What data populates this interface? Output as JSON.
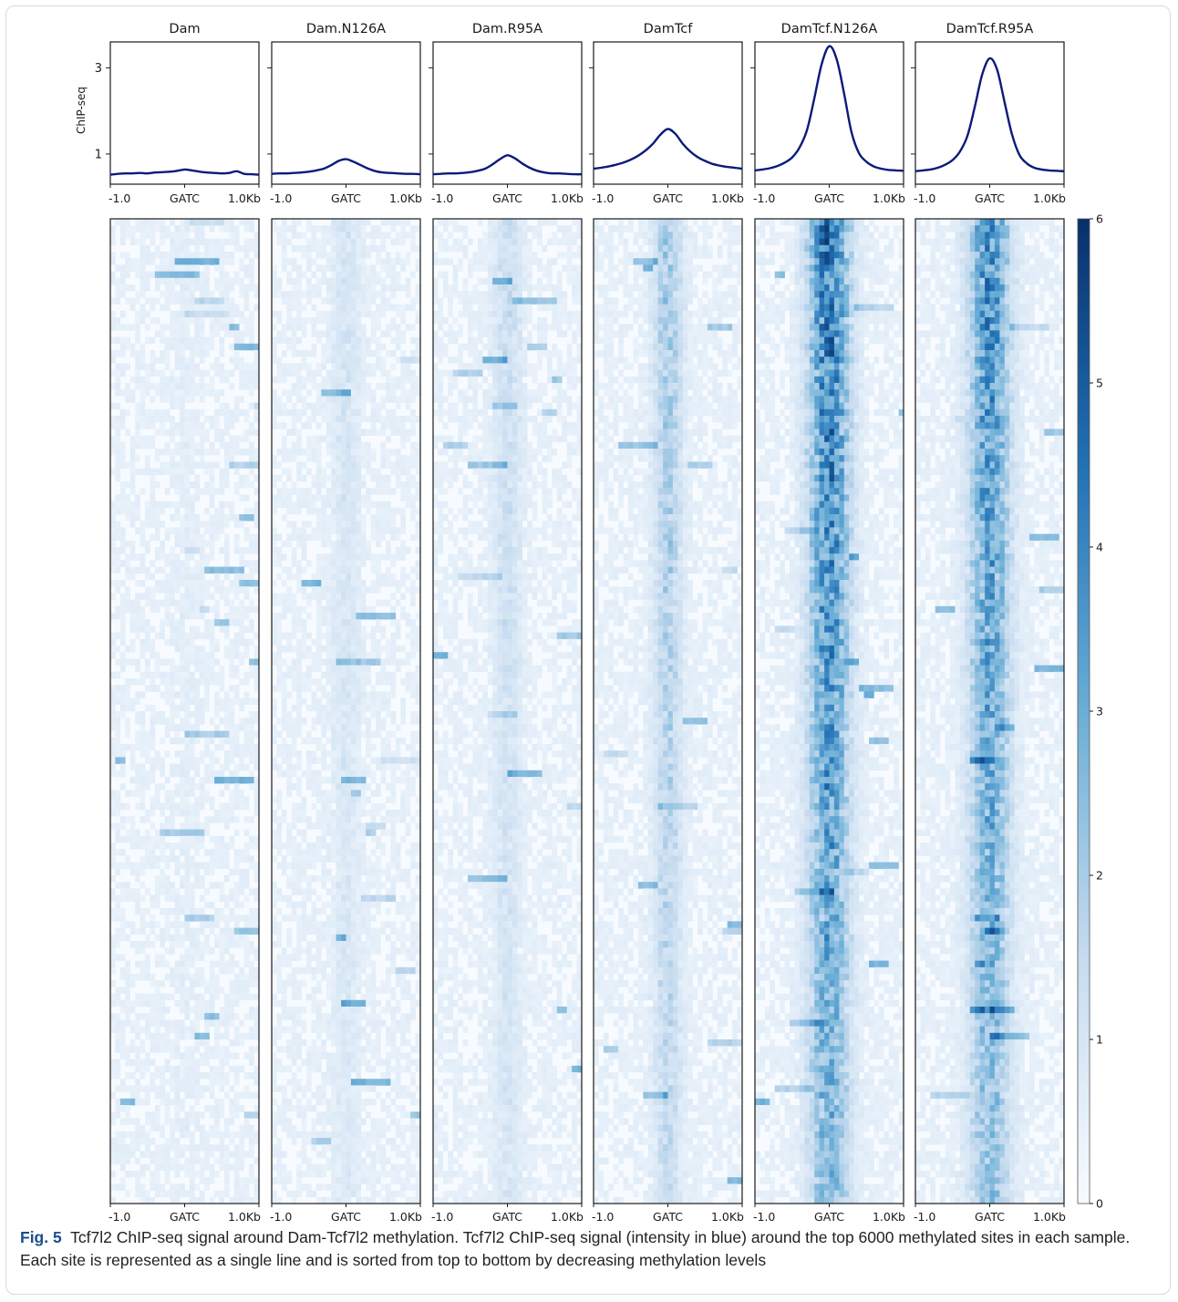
{
  "figure": {
    "label": "Fig. 5",
    "caption": "Tcf7l2 ChIP-seq signal around Dam-Tcf7l2 methylation. Tcf7l2 ChIP-seq signal (intensity in blue) around the top 6000 methylated sites in each sample. Each site is represented as a single line and is sorted from top to bottom by decreasing methylation levels"
  },
  "chart_data": [
    {
      "type": "line",
      "ylabel": "ChIP-seq",
      "yticks": [
        1,
        3
      ],
      "ylim": [
        0.3,
        3.6
      ],
      "x": [
        -1.0,
        -0.9,
        -0.8,
        -0.7,
        -0.6,
        -0.5,
        -0.4,
        -0.3,
        -0.2,
        -0.1,
        0.0,
        0.1,
        0.2,
        0.3,
        0.4,
        0.5,
        0.6,
        0.7,
        0.8,
        0.9,
        1.0
      ],
      "xtick_labels": [
        "-1.0",
        "GATC",
        "1.0Kb"
      ],
      "color": "#0b1a7a",
      "series": [
        {
          "name": "Dam",
          "values": [
            0.52,
            0.54,
            0.55,
            0.55,
            0.56,
            0.55,
            0.57,
            0.58,
            0.59,
            0.61,
            0.64,
            0.62,
            0.59,
            0.57,
            0.56,
            0.55,
            0.56,
            0.6,
            0.54,
            0.53,
            0.52
          ]
        },
        {
          "name": "Dam.N126A",
          "values": [
            0.54,
            0.55,
            0.55,
            0.56,
            0.57,
            0.59,
            0.62,
            0.66,
            0.74,
            0.84,
            0.88,
            0.82,
            0.74,
            0.66,
            0.6,
            0.57,
            0.56,
            0.55,
            0.54,
            0.54,
            0.53
          ]
        },
        {
          "name": "Dam.R95A",
          "values": [
            0.53,
            0.54,
            0.55,
            0.55,
            0.56,
            0.58,
            0.61,
            0.66,
            0.76,
            0.88,
            0.97,
            0.9,
            0.78,
            0.68,
            0.61,
            0.57,
            0.55,
            0.55,
            0.54,
            0.53,
            0.53
          ]
        },
        {
          "name": "DamTcf",
          "values": [
            0.66,
            0.68,
            0.71,
            0.75,
            0.8,
            0.87,
            0.96,
            1.08,
            1.24,
            1.45,
            1.58,
            1.47,
            1.24,
            1.06,
            0.93,
            0.84,
            0.77,
            0.73,
            0.7,
            0.68,
            0.66
          ]
        },
        {
          "name": "DamTcf.N126A",
          "values": [
            0.62,
            0.64,
            0.67,
            0.72,
            0.8,
            0.92,
            1.15,
            1.55,
            2.3,
            3.1,
            3.5,
            3.2,
            2.4,
            1.5,
            1.02,
            0.82,
            0.71,
            0.66,
            0.63,
            0.62,
            0.61
          ]
        },
        {
          "name": "DamTcf.R95A",
          "values": [
            0.6,
            0.62,
            0.64,
            0.68,
            0.75,
            0.86,
            1.06,
            1.42,
            2.1,
            2.85,
            3.22,
            2.95,
            2.2,
            1.45,
            0.98,
            0.78,
            0.68,
            0.64,
            0.62,
            0.61,
            0.6
          ]
        }
      ]
    },
    {
      "type": "heatmap",
      "panels": [
        "Dam",
        "Dam.N126A",
        "Dam.R95A",
        "DamTcf",
        "DamTcf.N126A",
        "DamTcf.R95A"
      ],
      "rows": 6000,
      "xtick_labels": [
        "-1.0",
        "GATC",
        "1.0Kb"
      ],
      "colorbar": {
        "min": 0,
        "max": 6,
        "ticks": [
          0,
          1,
          2,
          3,
          4,
          5,
          6
        ],
        "colors": [
          "#f7fbff",
          "#c6dbef",
          "#6baed6",
          "#2171b5",
          "#08306b"
        ]
      },
      "peak_intensity": [
        0.15,
        0.6,
        0.85,
        1.6,
        3.8,
        3.2
      ]
    }
  ]
}
